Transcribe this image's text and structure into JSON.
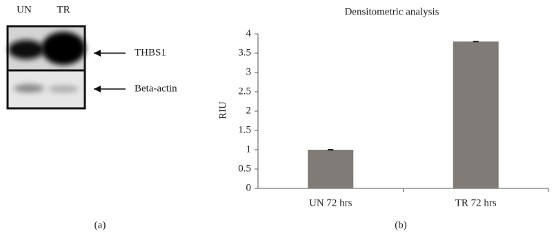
{
  "blot": {
    "lanes": [
      "UN",
      "TR"
    ],
    "bands": [
      "THBS1",
      "Beta-actin"
    ],
    "panel_label": "(a)"
  },
  "chart_data": {
    "type": "bar",
    "title": "Densitometric analysis",
    "y_label": "RIU",
    "categories": [
      "UN 72 hrs",
      "TR 72 hrs"
    ],
    "values": [
      1,
      3.8
    ],
    "errors": [
      0.01,
      0.01
    ],
    "color": "#807b77",
    "ylim": [
      0,
      4
    ],
    "yticks": [
      0,
      0.5,
      1,
      1.5,
      2,
      2.5,
      3,
      3.5,
      4
    ],
    "panel_label": "(b)"
  }
}
